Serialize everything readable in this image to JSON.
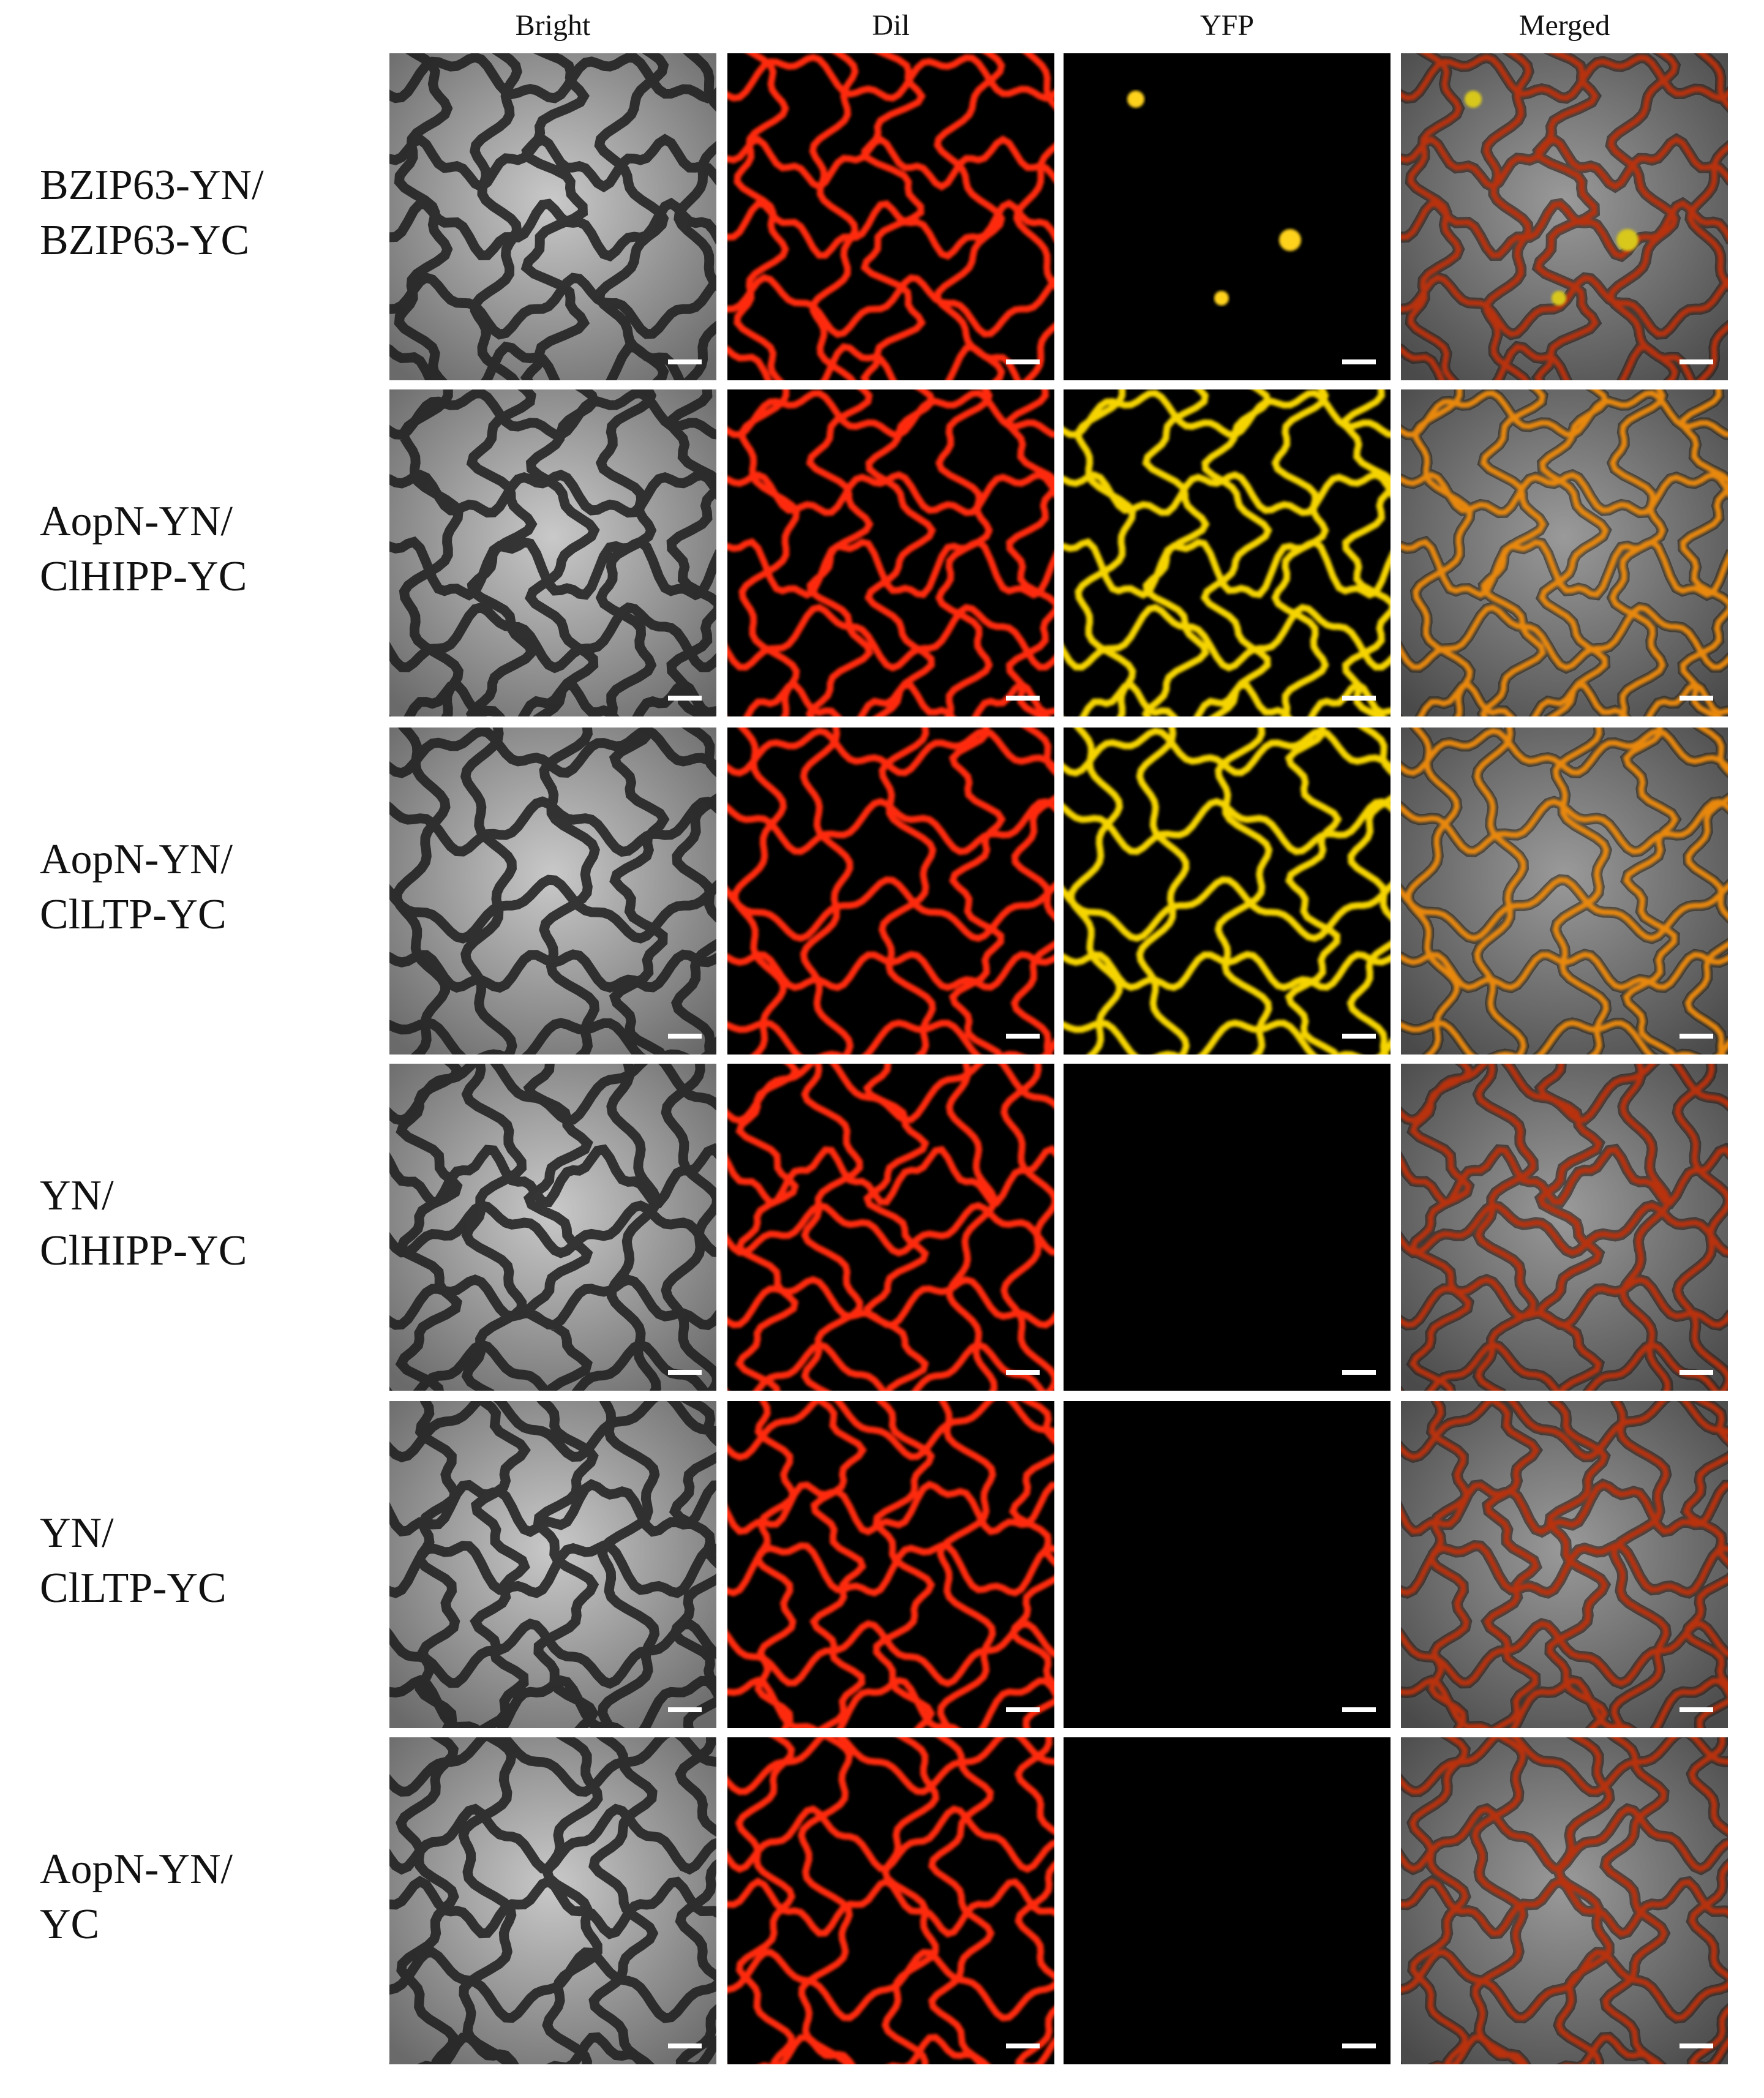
{
  "columns": [
    "Bright",
    "Dil",
    "YFP",
    "Merged"
  ],
  "rows": [
    {
      "lines": [
        "BZIP63-YN/",
        "BZIP63-YC"
      ]
    },
    {
      "lines": [
        "AopN-YN/",
        "ClHIPP-YC"
      ]
    },
    {
      "lines": [
        "AopN-YN/",
        "ClLTP-YC"
      ]
    },
    {
      "lines": [
        "YN/",
        "ClHIPP-YC"
      ]
    },
    {
      "lines": [
        "YN/",
        "ClLTP-YC"
      ]
    },
    {
      "lines": [
        "AopN-YN/",
        "YC"
      ]
    }
  ]
}
